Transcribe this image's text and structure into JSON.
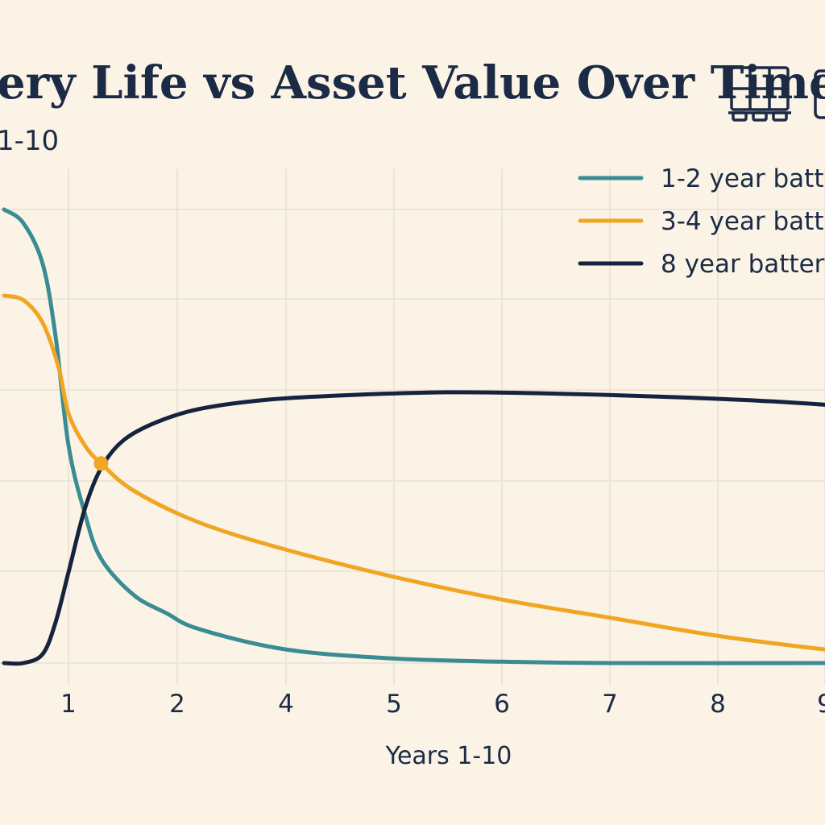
{
  "header": {
    "title": "ery Life vs Asset Value Over Time",
    "subtitle": "1-10"
  },
  "icons": [
    "solar-panel-icon",
    "battery-icon"
  ],
  "colors": {
    "background": "#fbf3e6",
    "text": "#1c2b45",
    "grid": "#e8e1d6"
  },
  "chart_data": {
    "type": "line",
    "title": "ery Life vs Asset Value Over Time",
    "subtitle": "1-10",
    "xlabel": "Years 1-10",
    "ylabel": "",
    "xticks": [
      "1",
      "2",
      "4",
      "5",
      "6",
      "7",
      "8",
      "9"
    ],
    "y_ticks_labeled": false,
    "grid": true,
    "legend_position": "top-right",
    "series": [
      {
        "name": "1-2 year batt",
        "color": "#3a8c93",
        "points": [
          [
            0,
            1.0
          ],
          [
            0.3,
            0.97
          ],
          [
            0.6,
            0.88
          ],
          [
            0.8,
            0.72
          ],
          [
            1.0,
            0.48
          ],
          [
            1.15,
            0.33
          ],
          [
            1.3,
            0.23
          ],
          [
            1.6,
            0.15
          ],
          [
            1.9,
            0.11
          ],
          [
            2.2,
            0.075
          ],
          [
            3.0,
            0.03
          ],
          [
            4.0,
            0.01
          ],
          [
            5.0,
            0.003
          ],
          [
            6.0,
            0.0
          ],
          [
            8.0,
            0.0
          ],
          [
            9.0,
            0.0
          ],
          [
            9.2,
            0.003
          ]
        ]
      },
      {
        "name": "3-4 year batt",
        "color": "#f0a624",
        "points": [
          [
            0,
            0.81
          ],
          [
            0.3,
            0.8
          ],
          [
            0.6,
            0.75
          ],
          [
            0.85,
            0.65
          ],
          [
            1.0,
            0.55
          ],
          [
            1.15,
            0.48
          ],
          [
            1.3,
            0.44
          ],
          [
            1.6,
            0.38
          ],
          [
            2.2,
            0.31
          ],
          [
            3.0,
            0.25
          ],
          [
            4.0,
            0.19
          ],
          [
            5.0,
            0.14
          ],
          [
            6.0,
            0.1
          ],
          [
            7.0,
            0.06
          ],
          [
            8.0,
            0.03
          ],
          [
            9.2,
            0.0
          ]
        ]
      },
      {
        "name": "8 year batter,",
        "color": "#15233f",
        "points": [
          [
            0,
            0.0
          ],
          [
            0.3,
            0.0
          ],
          [
            0.6,
            0.02
          ],
          [
            0.8,
            0.09
          ],
          [
            1.0,
            0.2
          ],
          [
            1.15,
            0.34
          ],
          [
            1.3,
            0.43
          ],
          [
            1.5,
            0.49
          ],
          [
            1.8,
            0.53
          ],
          [
            2.2,
            0.56
          ],
          [
            2.8,
            0.58
          ],
          [
            3.5,
            0.59
          ],
          [
            4.5,
            0.597
          ],
          [
            5.5,
            0.594
          ],
          [
            6.5,
            0.587
          ],
          [
            7.5,
            0.577
          ],
          [
            8.5,
            0.56
          ],
          [
            9.2,
            0.54
          ]
        ]
      }
    ],
    "annotations": [
      {
        "type": "marker",
        "series": "3-4 year batt",
        "x": 1.3,
        "y": 0.44,
        "color": "#f0a624"
      }
    ]
  }
}
